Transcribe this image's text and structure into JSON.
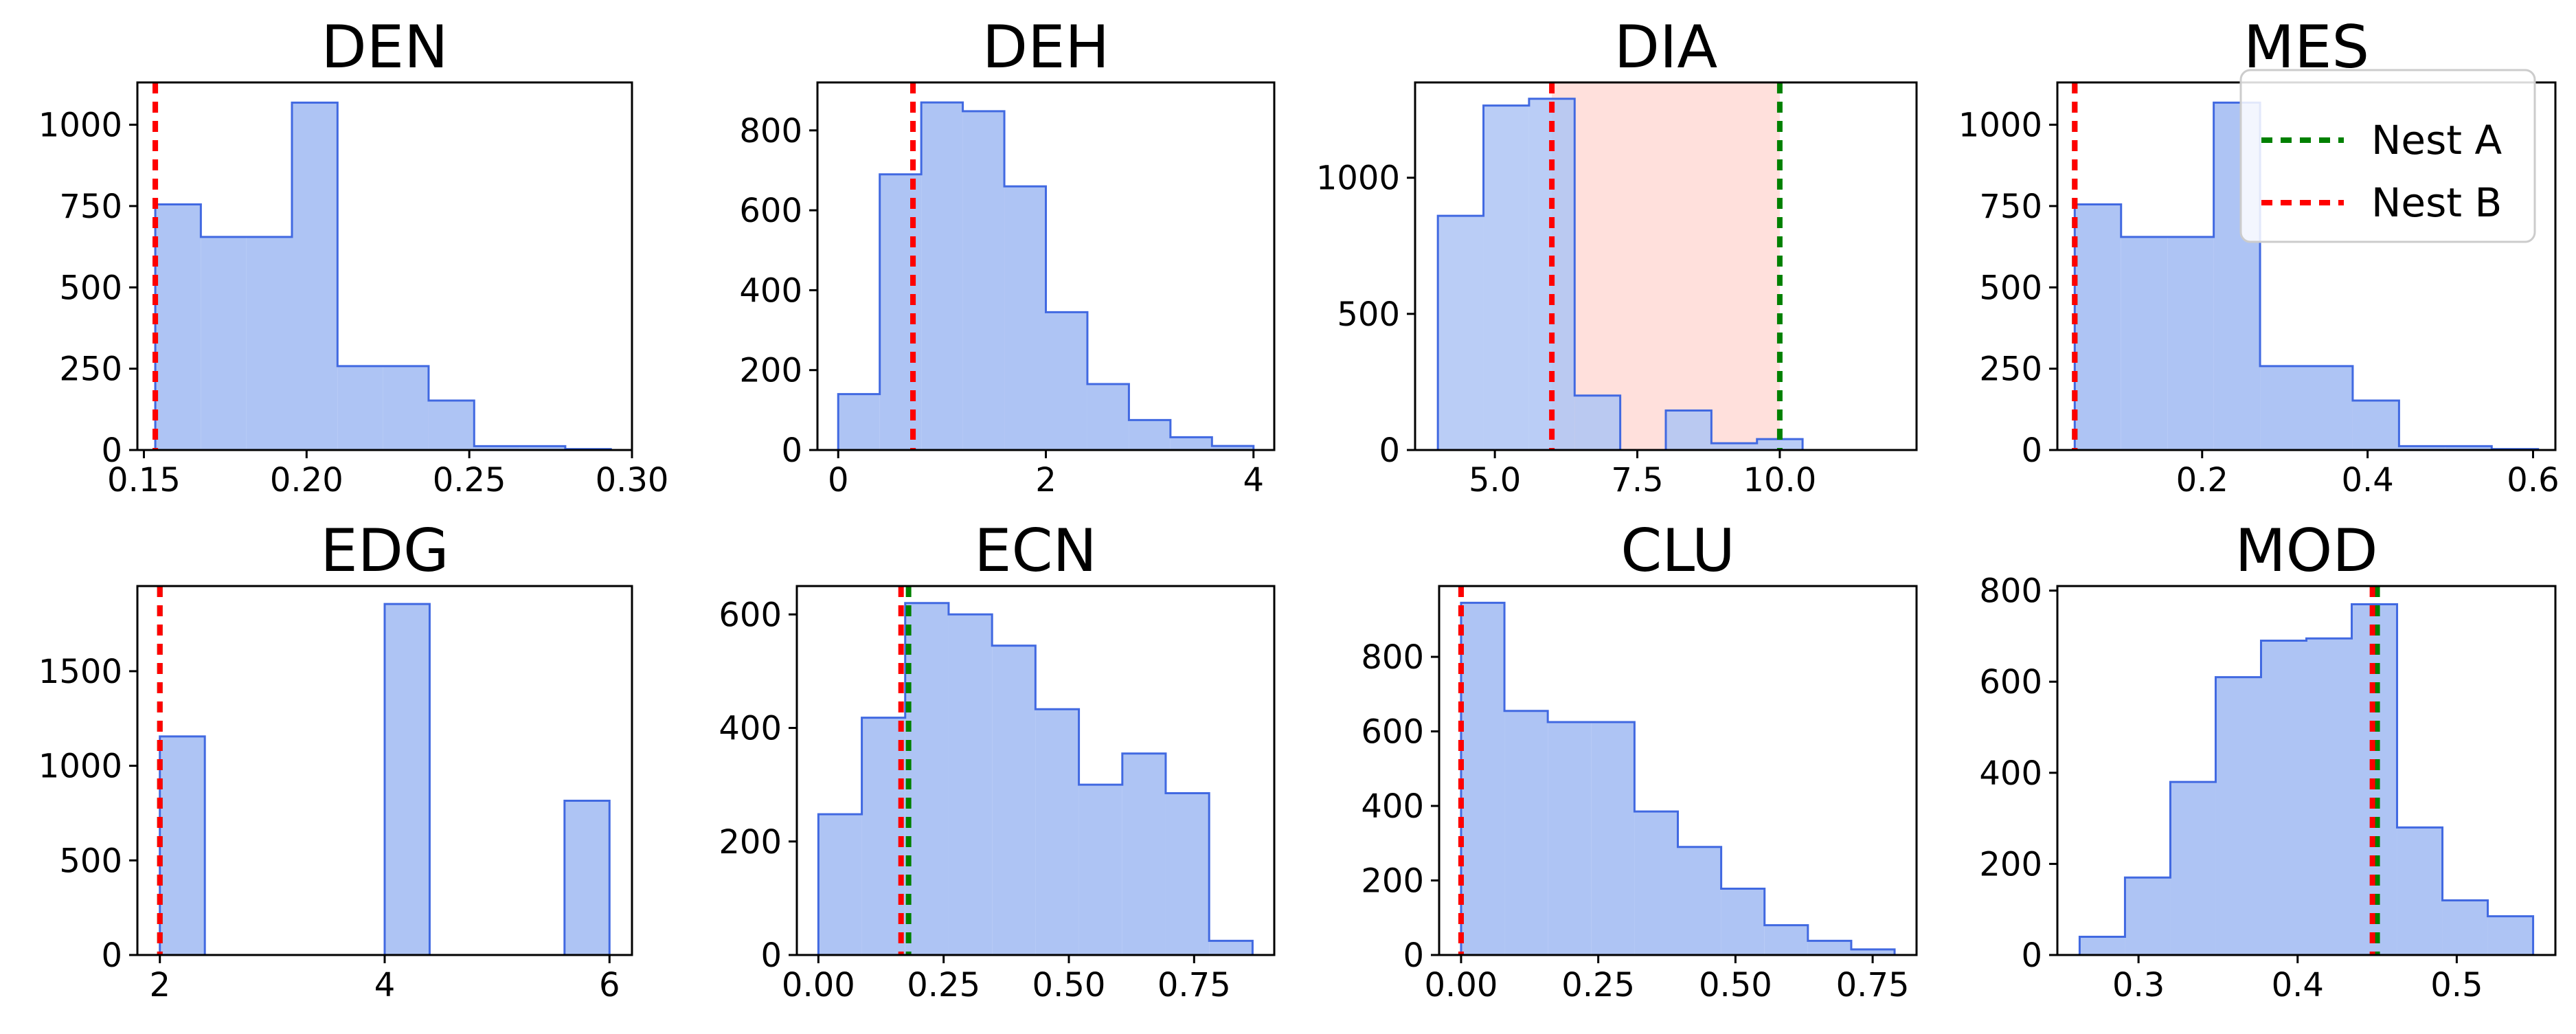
{
  "colors": {
    "bar_fill": "#aec4f4",
    "bar_edge": "#4169e1",
    "nest_a": "#008000",
    "nest_b": "#ff0000",
    "shade": "#ffe0dc"
  },
  "legend": {
    "location": "top-right of MES panel",
    "entries": [
      "Nest A",
      "Nest B"
    ]
  },
  "chart_data": [
    {
      "type": "bar",
      "title": "DEN",
      "bin_edges": [
        0.1535,
        0.1675,
        0.1815,
        0.1955,
        0.2095,
        0.2235,
        0.2375,
        0.2515,
        0.2655,
        0.2795,
        0.2935
      ],
      "values": [
        755,
        655,
        655,
        1068,
        258,
        258,
        152,
        12,
        12,
        3
      ],
      "xlim": [
        0.148,
        0.3
      ],
      "ylim": [
        0,
        1130
      ],
      "xticks": [
        0.15,
        0.2,
        0.25,
        0.3
      ],
      "xtick_labels": [
        "0.15",
        "0.20",
        "0.25",
        "0.30"
      ],
      "yticks": [
        0,
        250,
        500,
        750,
        1000
      ],
      "ytick_labels": [
        "0",
        "250",
        "500",
        "750",
        "1000"
      ],
      "nest_a": 0.1535,
      "nest_b": 0.1535
    },
    {
      "type": "bar",
      "title": "DEH",
      "bin_edges": [
        0.0,
        0.4,
        0.8,
        1.2,
        1.6,
        2.0,
        2.4,
        2.8,
        3.2,
        3.6,
        4.0
      ],
      "values": [
        140,
        690,
        870,
        848,
        660,
        345,
        165,
        75,
        32,
        10
      ],
      "xlim": [
        -0.2,
        4.2
      ],
      "ylim": [
        0,
        920
      ],
      "xticks": [
        0,
        2,
        4
      ],
      "xtick_labels": [
        "0",
        "2",
        "4"
      ],
      "yticks": [
        0,
        200,
        400,
        600,
        800
      ],
      "ytick_labels": [
        "0",
        "200",
        "400",
        "600",
        "800"
      ],
      "nest_a": 0.72,
      "nest_b": 0.72
    },
    {
      "type": "bar",
      "title": "DIA",
      "bin_edges": [
        4.0,
        4.8,
        5.6,
        6.4,
        7.2,
        8.0,
        8.8,
        9.6,
        10.4,
        11.2,
        12.0
      ],
      "values": [
        860,
        1265,
        1290,
        200,
        0,
        145,
        25,
        40,
        0,
        0
      ],
      "xlim": [
        3.6,
        12.4
      ],
      "ylim": [
        0,
        1350
      ],
      "xticks": [
        5.0,
        7.5,
        10.0
      ],
      "xtick_labels": [
        "5.0",
        "7.5",
        "10.0"
      ],
      "yticks": [
        0,
        500,
        1000
      ],
      "ytick_labels": [
        "0",
        "500",
        "1000"
      ],
      "shaded_range": [
        6.0,
        10.0
      ],
      "nest_a": 10.0,
      "nest_b": 6.0
    },
    {
      "type": "bar",
      "title": "MES",
      "bin_edges": [
        0.046,
        0.102,
        0.158,
        0.214,
        0.27,
        0.326,
        0.382,
        0.438,
        0.494,
        0.55,
        0.606
      ],
      "values": [
        755,
        655,
        655,
        1068,
        258,
        258,
        152,
        12,
        12,
        3
      ],
      "xlim": [
        0.025,
        0.627
      ],
      "ylim": [
        0,
        1130
      ],
      "xticks": [
        0.2,
        0.4,
        0.6
      ],
      "xtick_labels": [
        "0.2",
        "0.4",
        "0.6"
      ],
      "yticks": [
        0,
        250,
        500,
        750,
        1000
      ],
      "ytick_labels": [
        "0",
        "250",
        "500",
        "750",
        "1000"
      ],
      "nest_a": 0.046,
      "nest_b": 0.046
    },
    {
      "type": "bar",
      "title": "EDG",
      "bin_edges": [
        2.0,
        2.4,
        2.8,
        3.2,
        3.6,
        4.0,
        4.4,
        4.8,
        5.2,
        5.6,
        6.0
      ],
      "values": [
        1155,
        0,
        0,
        0,
        0,
        1855,
        0,
        0,
        0,
        815
      ],
      "xlim": [
        1.8,
        6.2
      ],
      "ylim": [
        0,
        1950
      ],
      "xticks": [
        2,
        4,
        6
      ],
      "xtick_labels": [
        "2",
        "4",
        "6"
      ],
      "yticks": [
        0,
        500,
        1000,
        1500
      ],
      "ytick_labels": [
        "0",
        "500",
        "1000",
        "1500"
      ],
      "nest_a": 2.0,
      "nest_b": 2.0
    },
    {
      "type": "bar",
      "title": "ECN",
      "bin_edges": [
        0.0,
        0.0867,
        0.1733,
        0.26,
        0.3467,
        0.4333,
        0.52,
        0.6067,
        0.6933,
        0.78,
        0.8667
      ],
      "values": [
        248,
        418,
        620,
        600,
        545,
        433,
        300,
        355,
        285,
        25
      ],
      "xlim": [
        -0.043,
        0.91
      ],
      "ylim": [
        0,
        650
      ],
      "xticks": [
        0.0,
        0.25,
        0.5,
        0.75
      ],
      "xtick_labels": [
        "0.00",
        "0.25",
        "0.50",
        "0.75"
      ],
      "yticks": [
        0,
        200,
        400,
        600
      ],
      "ytick_labels": [
        "0",
        "200",
        "400",
        "600"
      ],
      "nest_a": 0.18,
      "nest_b": 0.165
    },
    {
      "type": "bar",
      "title": "CLU",
      "bin_edges": [
        0.0,
        0.079,
        0.158,
        0.237,
        0.316,
        0.395,
        0.474,
        0.553,
        0.632,
        0.711,
        0.79
      ],
      "values": [
        945,
        655,
        625,
        625,
        385,
        290,
        178,
        80,
        38,
        15
      ],
      "xlim": [
        -0.04,
        0.83
      ],
      "ylim": [
        0,
        990
      ],
      "xticks": [
        0.0,
        0.25,
        0.5,
        0.75
      ],
      "xtick_labels": [
        "0.00",
        "0.25",
        "0.50",
        "0.75"
      ],
      "yticks": [
        0,
        200,
        400,
        600,
        800
      ],
      "ytick_labels": [
        "0",
        "200",
        "400",
        "600",
        "800"
      ],
      "nest_a": 0.0,
      "nest_b": 0.0
    },
    {
      "type": "bar",
      "title": "MOD",
      "bin_edges": [
        0.263,
        0.2915,
        0.32,
        0.3485,
        0.377,
        0.4055,
        0.434,
        0.4625,
        0.491,
        0.5195,
        0.548
      ],
      "values": [
        40,
        170,
        380,
        610,
        690,
        695,
        770,
        280,
        120,
        85
      ],
      "xlim": [
        0.249,
        0.562
      ],
      "ylim": [
        0,
        810
      ],
      "xticks": [
        0.3,
        0.4,
        0.5
      ],
      "xtick_labels": [
        "0.3",
        "0.4",
        "0.5"
      ],
      "yticks": [
        0,
        200,
        400,
        600,
        800
      ],
      "ytick_labels": [
        "0",
        "200",
        "400",
        "600",
        "800"
      ],
      "nest_a": 0.45,
      "nest_b": 0.447
    }
  ]
}
